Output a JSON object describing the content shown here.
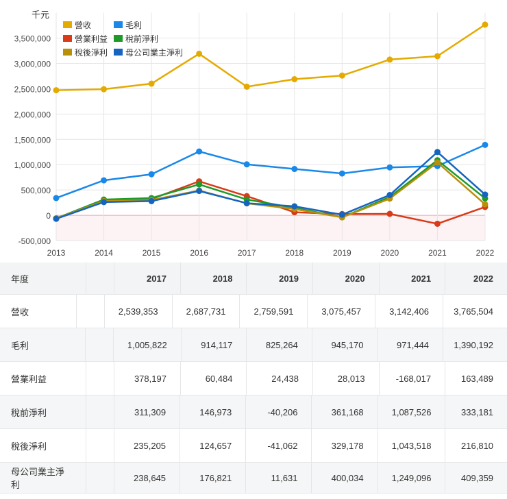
{
  "chart_data": {
    "type": "line",
    "unit_label": "千元",
    "x": [
      "2013",
      "2014",
      "2015",
      "2016",
      "2017",
      "2018",
      "2019",
      "2020",
      "2021",
      "2022"
    ],
    "ylim": [
      -500000,
      4000000
    ],
    "yticks": [
      "-500,000",
      "0",
      "500,000",
      "1,000,000",
      "1,500,000",
      "2,000,000",
      "2,500,000",
      "3,000,000",
      "3,500,000"
    ],
    "ytick_values": [
      -500000,
      0,
      500000,
      1000000,
      1500000,
      2000000,
      2500000,
      3000000,
      3500000
    ],
    "grid": true,
    "legend_position": "top-left",
    "series": [
      {
        "name": "營收",
        "color": "#e5aa00",
        "values": [
          2470000,
          2490000,
          2600000,
          3190000,
          2539353,
          2687731,
          2759591,
          3075457,
          3142406,
          3765504
        ]
      },
      {
        "name": "毛利",
        "color": "#1a88e8",
        "values": [
          340000,
          690000,
          810000,
          1260000,
          1005822,
          914117,
          825264,
          945170,
          971444,
          1390192
        ]
      },
      {
        "name": "營業利益",
        "color": "#d93a17",
        "values": [
          -60000,
          290000,
          320000,
          670000,
          378197,
          60484,
          24438,
          28013,
          -168017,
          163489
        ]
      },
      {
        "name": "稅前淨利",
        "color": "#1f9a28",
        "values": [
          -60000,
          310000,
          340000,
          610000,
          311309,
          146973,
          -40206,
          361168,
          1087526,
          333181
        ]
      },
      {
        "name": "稅後淨利",
        "color": "#b8900c",
        "values": [
          -60000,
          280000,
          300000,
          490000,
          235205,
          124657,
          -41062,
          329178,
          1043518,
          216810
        ]
      },
      {
        "name": "母公司業主淨利",
        "color": "#1565c0",
        "values": [
          -70000,
          260000,
          280000,
          480000,
          238645,
          176821,
          11631,
          400034,
          1249096,
          409359
        ]
      }
    ]
  },
  "table": {
    "header_label": "年度",
    "years": [
      "2017",
      "2018",
      "2019",
      "2020",
      "2021",
      "2022"
    ],
    "rows": [
      {
        "label": "營收",
        "values": [
          "2,539,353",
          "2,687,731",
          "2,759,591",
          "3,075,457",
          "3,142,406",
          "3,765,504"
        ]
      },
      {
        "label": "毛利",
        "values": [
          "1,005,822",
          "914,117",
          "825,264",
          "945,170",
          "971,444",
          "1,390,192"
        ]
      },
      {
        "label": "營業利益",
        "values": [
          "378,197",
          "60,484",
          "24,438",
          "28,013",
          "-168,017",
          "163,489"
        ]
      },
      {
        "label": "稅前淨利",
        "values": [
          "311,309",
          "146,973",
          "-40,206",
          "361,168",
          "1,087,526",
          "333,181"
        ]
      },
      {
        "label": "稅後淨利",
        "values": [
          "235,205",
          "124,657",
          "-41,062",
          "329,178",
          "1,043,518",
          "216,810"
        ]
      },
      {
        "label": "母公司業主淨利",
        "values": [
          "238,645",
          "176,821",
          "11,631",
          "400,034",
          "1,249,096",
          "409,359"
        ]
      }
    ]
  }
}
